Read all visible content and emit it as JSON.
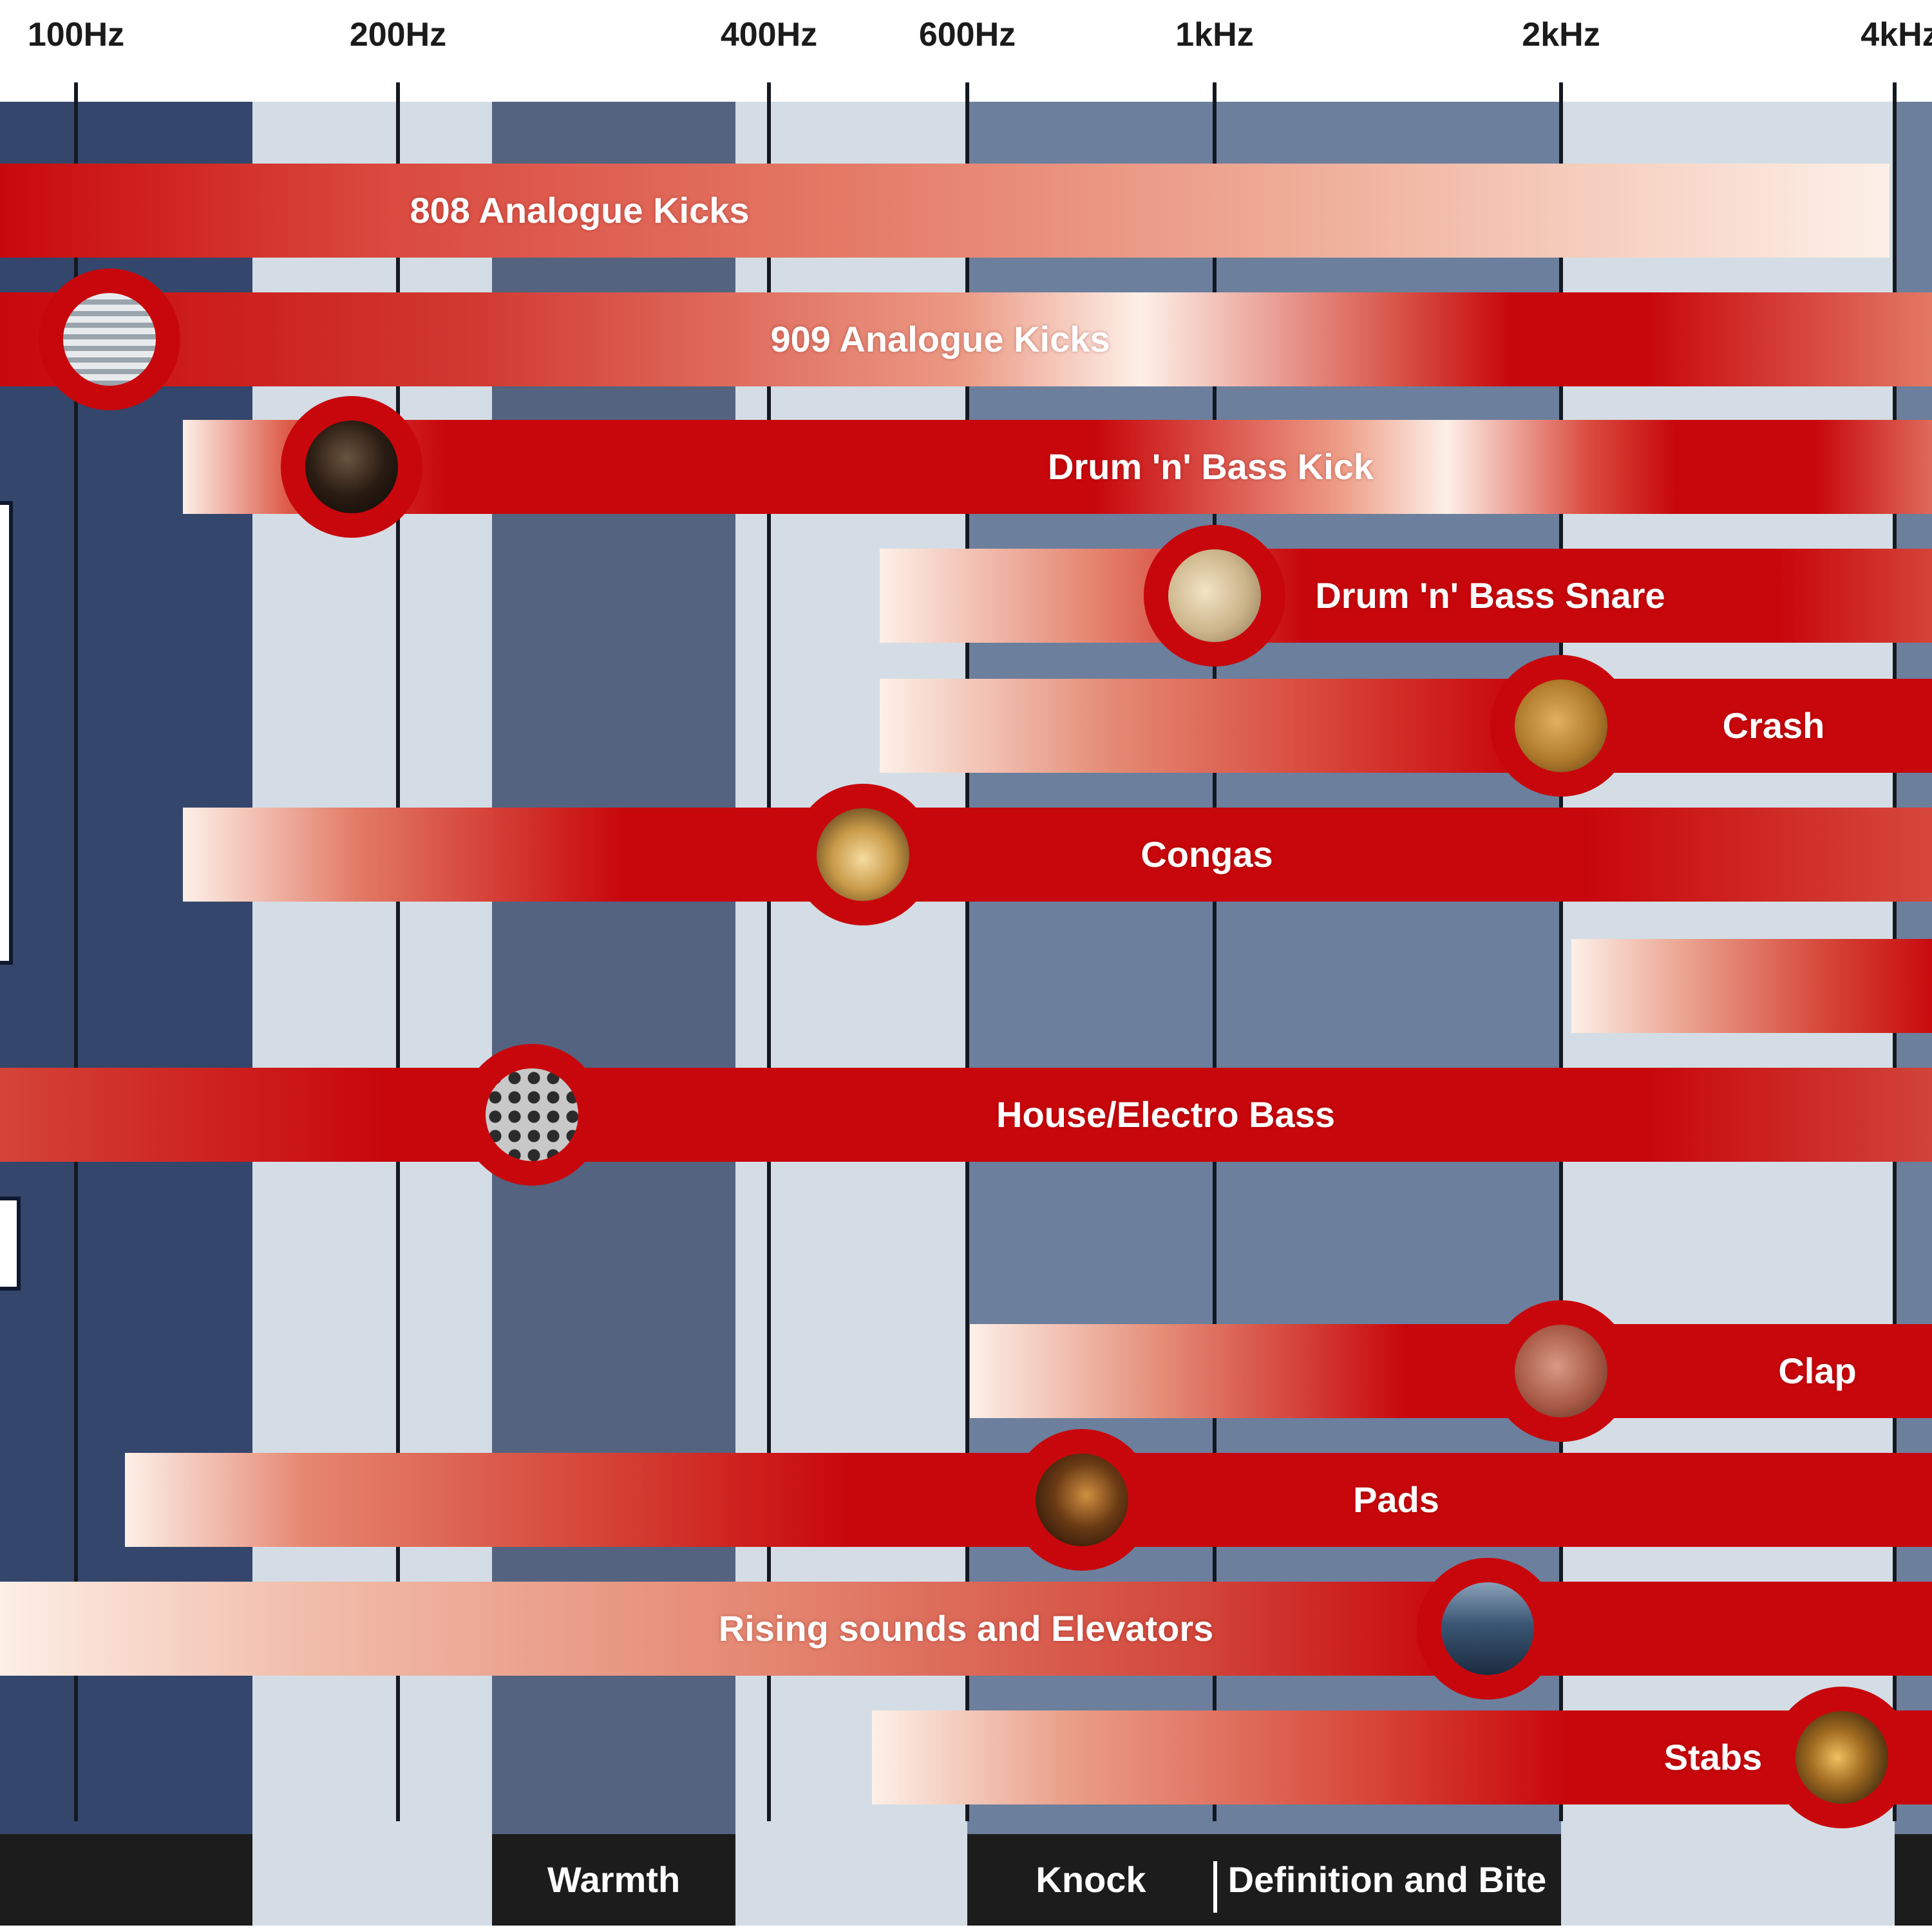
{
  "frequency_labels": [
    "100Hz",
    "200Hz",
    "400Hz",
    "600Hz",
    "1kHz",
    "2kHz",
    "4kHz"
  ],
  "zones": [
    "Warmth",
    "Knock",
    "Definition and Bite"
  ],
  "bands": [
    {
      "label": "808 Analogue Kicks",
      "icon": null
    },
    {
      "label": "909 Analogue Kicks",
      "icon": "grille-photo-icon"
    },
    {
      "label": "Drum 'n' Bass Kick",
      "icon": "drum-photo-icon"
    },
    {
      "label": "Drum 'n' Bass Snare",
      "icon": "snare-photo-icon"
    },
    {
      "label": "Crash",
      "icon": "cymbal-photo-icon"
    },
    {
      "label": "Congas",
      "icon": "conga-photo-icon"
    },
    {
      "label": "",
      "icon": null
    },
    {
      "label": "House/Electro Bass",
      "icon": "speaker-photo-icon"
    },
    {
      "label": "Clap",
      "icon": "hands-photo-icon"
    },
    {
      "label": "Pads",
      "icon": "synth-photo-icon"
    },
    {
      "label": "Rising sounds and Elevators",
      "icon": "city-photo-icon"
    },
    {
      "label": "Stabs",
      "icon": "trumpet-photo-icon"
    }
  ],
  "colors": {
    "band_red": "#c8070c",
    "band_pale": "#fdf0e8",
    "column_light": "#d4dde5",
    "column_mid": "#6c7f9d",
    "column_dark": "#34466b",
    "zone_bar": "#1c1c1c"
  }
}
